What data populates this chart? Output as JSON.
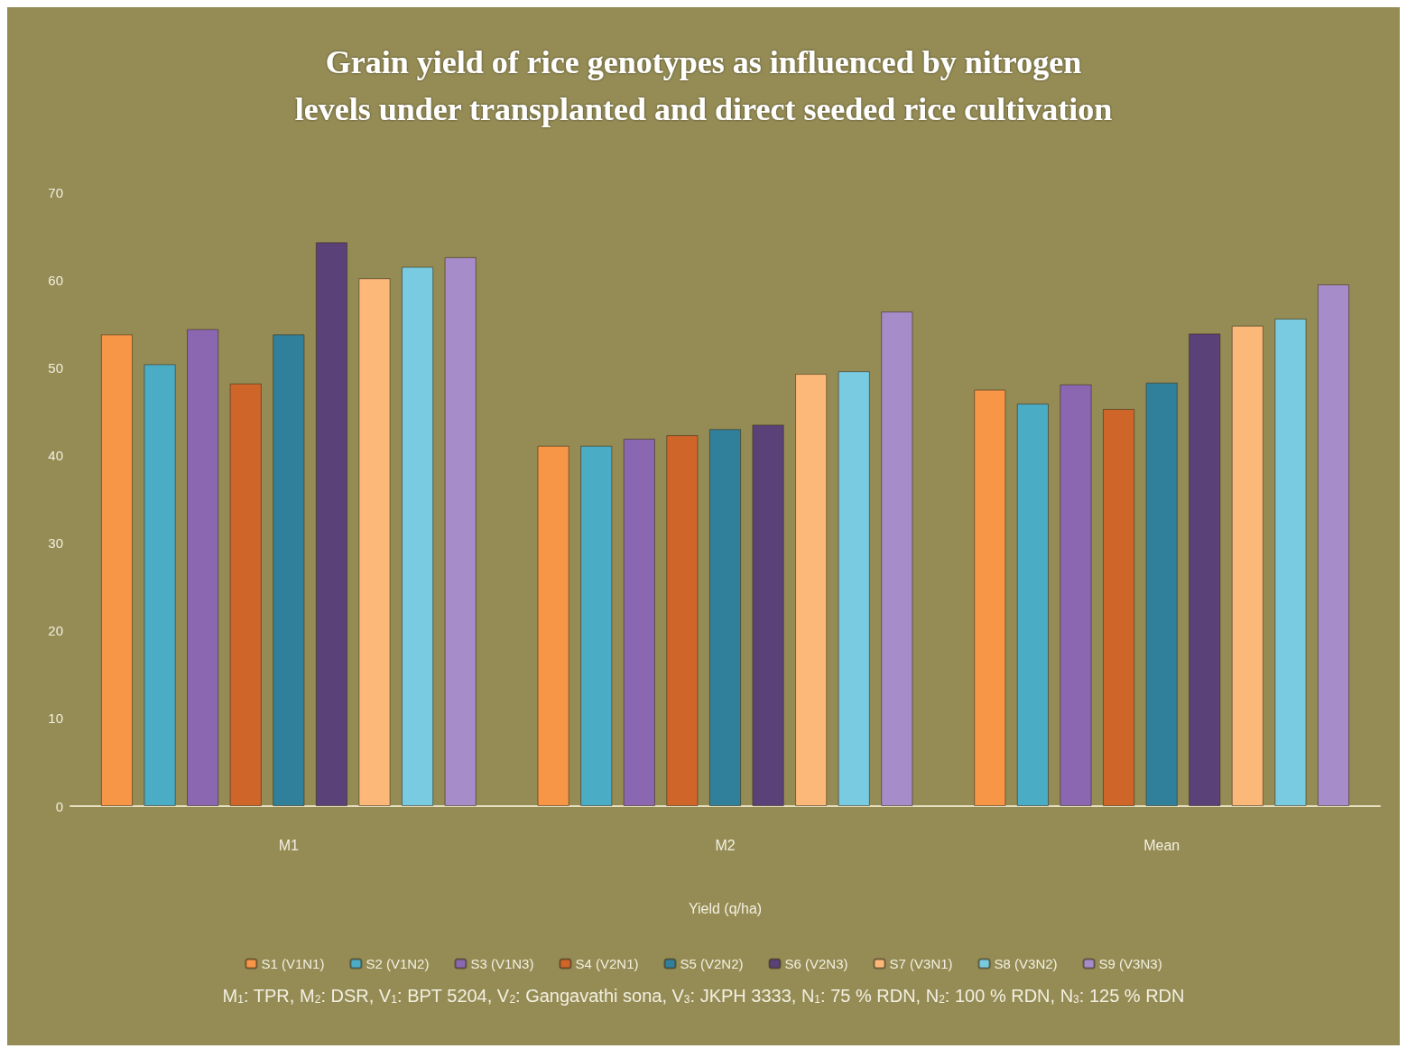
{
  "chart_data": {
    "type": "bar",
    "title": "Grain yield of rice genotypes as influenced by nitrogen\nlevels under transplanted and direct seeded rice cultivation",
    "xlabel": "Yield (q/ha)",
    "categories": [
      "M1",
      "M2",
      "Mean"
    ],
    "series": [
      {
        "name": "S1 (V1N1)",
        "color": "#f79646",
        "values": [
          53.8,
          41.1,
          47.5
        ]
      },
      {
        "name": "S2 (V1N2)",
        "color": "#4bacc6",
        "values": [
          50.4,
          41.1,
          45.9
        ]
      },
      {
        "name": "S3 (V1N3)",
        "color": "#8a67b0",
        "values": [
          54.4,
          41.9,
          48.1
        ]
      },
      {
        "name": "S4 (V2N1)",
        "color": "#d0652a",
        "values": [
          48.2,
          42.3,
          45.3
        ]
      },
      {
        "name": "S5 (V2N2)",
        "color": "#31809b",
        "values": [
          53.8,
          43.0,
          48.3
        ]
      },
      {
        "name": "S6 (V2N3)",
        "color": "#5a4178",
        "values": [
          64.3,
          43.5,
          53.9
        ]
      },
      {
        "name": "S7 (V3N1)",
        "color": "#fbb878",
        "values": [
          60.2,
          49.3,
          54.8
        ]
      },
      {
        "name": "S8 (V3N2)",
        "color": "#78cbe0",
        "values": [
          61.5,
          49.6,
          55.6
        ]
      },
      {
        "name": "S9 (V3N3)",
        "color": "#a68cc9",
        "values": [
          62.6,
          56.4,
          59.5
        ]
      }
    ],
    "ylim": [
      0,
      70
    ],
    "yticks": [
      0,
      10,
      20,
      30,
      40,
      50,
      60,
      70
    ],
    "grid": false,
    "legend": "bottom",
    "annotations": [
      "M$_{1}$: TPR, M$_{2}$: DSR, V$_{1}$: BPT 5204, V$_{2}$: Gangavathi sona, V$_{3}$: JKPH 3333, N$_{1}$: 75 % RDN, N$_{2}$: 100 % RDN, N$_{3}$: 125 % RDN"
    ]
  }
}
